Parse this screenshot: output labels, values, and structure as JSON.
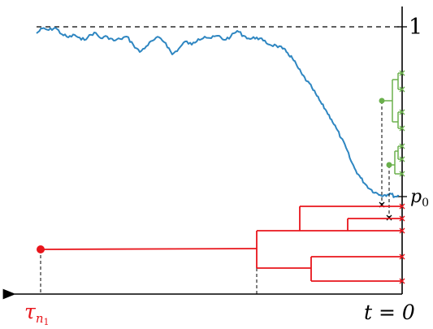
{
  "labels": {
    "one": "1",
    "p0_base": "p",
    "p0_sub": "0",
    "t_zero": "t = 0",
    "tau_base": "τ",
    "tau_sub": "n",
    "tau_subsub": "1"
  },
  "colors": {
    "trajectory": "#2e86c1",
    "red_tree": "#e8151b",
    "green_tree": "#6ab04c",
    "axis": "#000000"
  }
}
